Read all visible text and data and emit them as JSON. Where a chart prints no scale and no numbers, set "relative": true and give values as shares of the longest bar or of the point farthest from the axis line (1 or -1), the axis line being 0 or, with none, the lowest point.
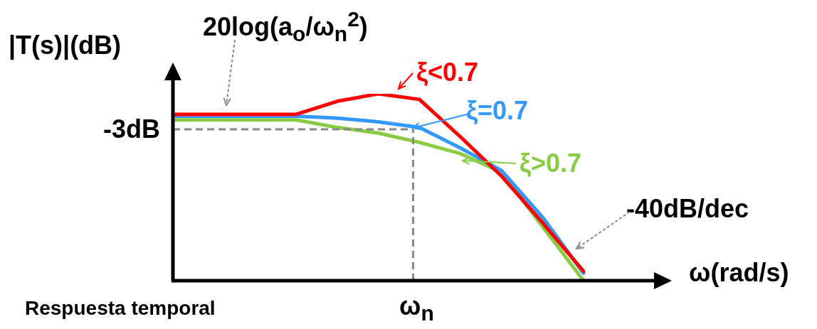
{
  "chart_data": {
    "type": "line",
    "relative": true,
    "ylabel": "|T(s)|(dB)",
    "xlabel": "ω(rad/s)",
    "categories": [
      null,
      null,
      null,
      null,
      null,
      null,
      null,
      null,
      null,
      null,
      null
    ],
    "series": [
      {
        "name": "ξ<0.7",
        "color": "#ff0000",
        "values": [
          0.89,
          0.89,
          0.89,
          0.89,
          0.96,
          1,
          0.97,
          0.77,
          0.56,
          0.31,
          0.05
        ]
      },
      {
        "name": "ξ=0.7",
        "color": "#3399ff",
        "values": [
          0.88,
          0.88,
          0.88,
          0.88,
          0.87,
          0.85,
          0.82,
          0.71,
          0.59,
          0.34,
          0.04
        ]
      },
      {
        "name": "ξ>0.7",
        "color": "#88cc44",
        "values": [
          0.86,
          0.86,
          0.86,
          0.86,
          0.82,
          0.79,
          0.74,
          0.68,
          0.58,
          0.29,
          0
        ]
      }
    ],
    "ref_lines": [
      {
        "axis": "y",
        "value": 0.81,
        "label": "-3dB",
        "color": "#888888",
        "line_style": "dashed"
      }
    ],
    "annotations": [
      "20log(a$_{o}$/ω$_{n}$$^{2}$)",
      "-40dB/dec",
      "Respuesta temporal",
      "ω$_{n}$"
    ],
    "legend": "top right",
    "marker": "none",
    "line_style": "solid"
  }
}
